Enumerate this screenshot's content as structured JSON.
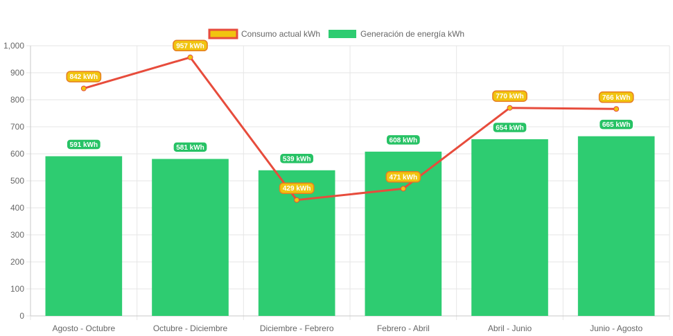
{
  "chart_data": {
    "type": "bar",
    "categories": [
      "Agosto - Octubre",
      "Octubre - Diciembre",
      "Diciembre - Febrero",
      "Febrero - Abril",
      "Abril - Junio",
      "Junio - Agosto"
    ],
    "series": [
      {
        "name": "Consumo actual kWh",
        "type": "line",
        "values": [
          842,
          957,
          429,
          471,
          770,
          766
        ],
        "labels": [
          "842 kWh",
          "957 kWh",
          "429 kWh",
          "471 kWh",
          "770 kWh",
          "766 kWh"
        ],
        "color": "#e74c3c",
        "fill": "#f1c40f"
      },
      {
        "name": "Generación de energía kWh",
        "type": "bar",
        "values": [
          591,
          581,
          539,
          608,
          654,
          665
        ],
        "labels": [
          "591 kWh",
          "581 kWh",
          "539 kWh",
          "608 kWh",
          "654 kWh",
          "665 kWh"
        ],
        "color": "#2ecc71"
      }
    ],
    "yticks": [
      "0",
      "100",
      "200",
      "300",
      "400",
      "500",
      "600",
      "700",
      "800",
      "900",
      "1,000"
    ],
    "ylim": [
      0,
      1000
    ],
    "grid": true,
    "legend": "top-center"
  }
}
